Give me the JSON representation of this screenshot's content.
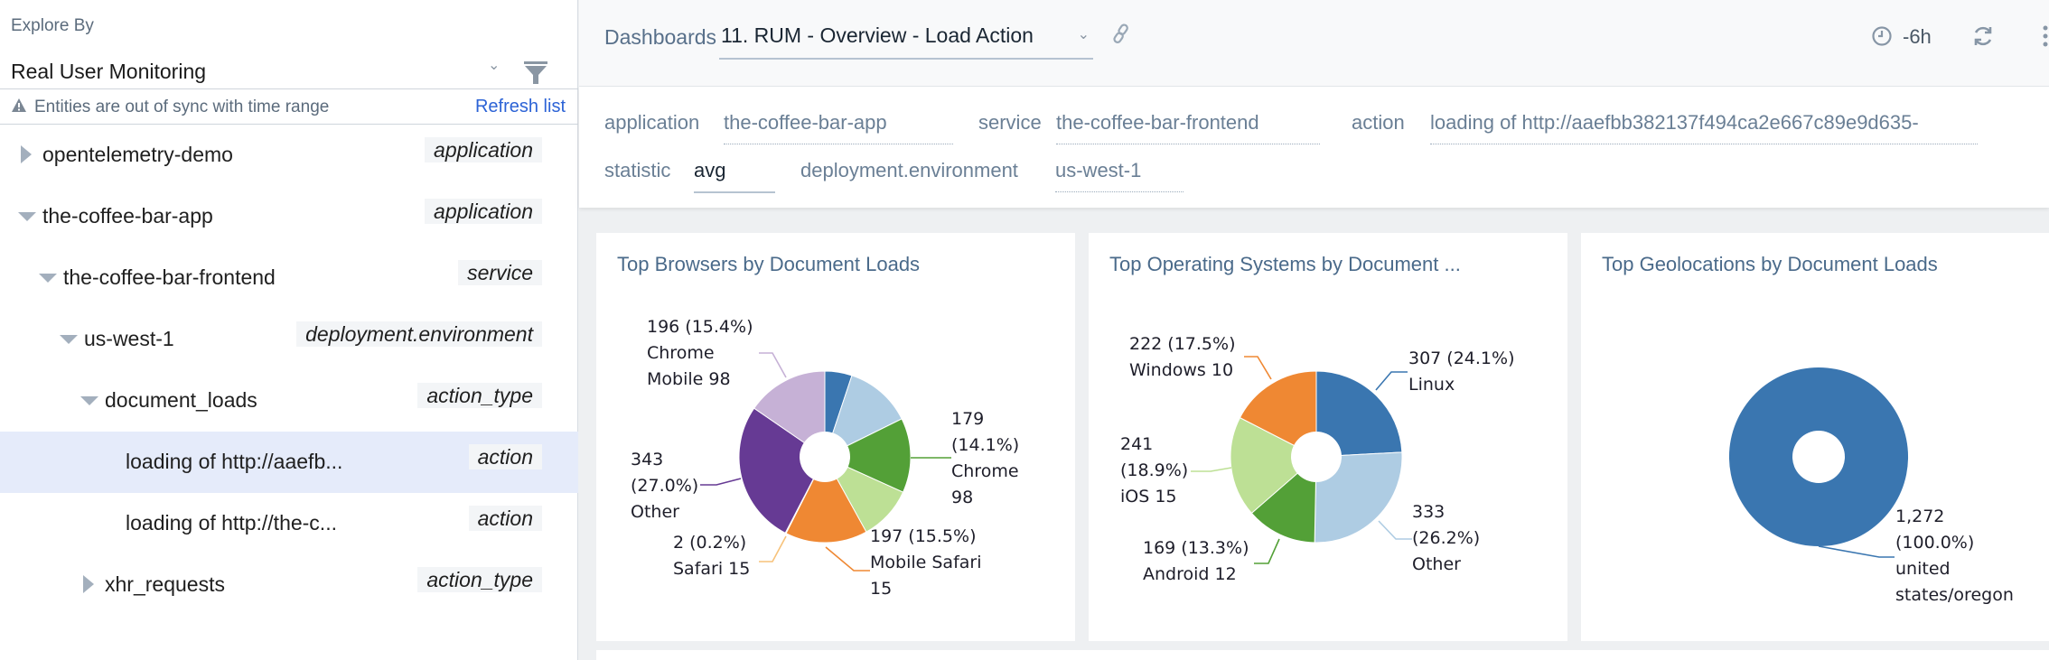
{
  "sidebar": {
    "explore_label": "Explore By",
    "explore_value": "Real User Monitoring",
    "warning": "Entities are out of sync with time range",
    "refresh_label": "Refresh list",
    "tree": [
      {
        "label": "opentelemetry-demo",
        "type": "application",
        "expanded": false,
        "level": 0
      },
      {
        "label": "the-coffee-bar-app",
        "type": "application",
        "expanded": true,
        "level": 0
      },
      {
        "label": "the-coffee-bar-frontend",
        "type": "service",
        "expanded": true,
        "level": 1
      },
      {
        "label": "us-west-1",
        "type": "deployment.environment",
        "expanded": true,
        "level": 2
      },
      {
        "label": "document_loads",
        "type": "action_type",
        "expanded": true,
        "level": 3
      },
      {
        "label": "loading of http://aaefb...",
        "type": "action",
        "level": 4,
        "selected": true
      },
      {
        "label": "loading of http://the-c...",
        "type": "action",
        "level": 4
      },
      {
        "label": "xhr_requests",
        "type": "action_type",
        "expanded": false,
        "level": 3
      }
    ]
  },
  "topbar": {
    "breadcrumb": "Dashboards",
    "dashboard": "11. RUM - Overview - Load Action",
    "time_range": "-6h"
  },
  "filters": {
    "application": {
      "key": "application",
      "value": "the-coffee-bar-app"
    },
    "service": {
      "key": "service",
      "value": "the-coffee-bar-frontend"
    },
    "action": {
      "key": "action",
      "value": "loading of http://aaefbb382137f494ca2e667c89e9d635-"
    },
    "statistic": {
      "key": "statistic",
      "value": "avg"
    },
    "environment": {
      "key": "deployment.environment",
      "value": "us-west-1"
    }
  },
  "chart_data": [
    {
      "type": "pie",
      "donut": true,
      "title": "Top Browsers by Document Loads",
      "slices": [
        {
          "label": "",
          "value": 65,
          "color": "#3a76b0"
        },
        {
          "label": "",
          "value": 160,
          "color": "#aecce3"
        },
        {
          "label": "Chrome 98",
          "value": 179,
          "percent": "14.1%",
          "color": "#53a037",
          "lines": [
            "179",
            "(14.1%)",
            "Chrome",
            "98"
          ]
        },
        {
          "label": "",
          "value": 130,
          "color": "#bde095"
        },
        {
          "label": "Mobile Safari 15",
          "value": 197,
          "percent": "15.5%",
          "color": "#ef8833",
          "lines": [
            "197 (15.5%)",
            "Mobile Safari",
            "15"
          ]
        },
        {
          "label": "Safari 15",
          "value": 2,
          "percent": "0.2%",
          "color": "#f7c27a",
          "lines": [
            "2 (0.2%)",
            "Safari 15"
          ]
        },
        {
          "label": "Other",
          "value": 343,
          "percent": "27.0%",
          "color": "#663a94",
          "lines": [
            "343",
            "(27.0%)",
            "Other"
          ]
        },
        {
          "label": "Chrome Mobile 98",
          "value": 196,
          "percent": "15.4%",
          "color": "#c6b1d6",
          "lines": [
            "196 (15.4%)",
            "Chrome",
            "Mobile 98"
          ]
        }
      ]
    },
    {
      "type": "pie",
      "donut": true,
      "title": "Top Operating Systems by Document ...",
      "slices": [
        {
          "label": "Linux",
          "value": 307,
          "percent": "24.1%",
          "color": "#3a76b0",
          "lines": [
            "307 (24.1%)",
            "Linux"
          ]
        },
        {
          "label": "Other",
          "value": 333,
          "percent": "26.2%",
          "color": "#aecce3",
          "lines": [
            "333",
            "(26.2%)",
            "Other"
          ]
        },
        {
          "label": "Android 12",
          "value": 169,
          "percent": "13.3%",
          "color": "#53a037",
          "lines": [
            "169 (13.3%)",
            "Android 12"
          ]
        },
        {
          "label": "iOS 15",
          "value": 241,
          "percent": "18.9%",
          "color": "#bde095",
          "lines": [
            "241",
            "(18.9%)",
            "iOS 15"
          ]
        },
        {
          "label": "Windows 10",
          "value": 222,
          "percent": "17.5%",
          "color": "#ef8833",
          "lines": [
            "222 (17.5%)",
            "Windows 10"
          ]
        }
      ]
    },
    {
      "type": "pie",
      "donut": true,
      "title": "Top Geolocations by Document Loads",
      "slices": [
        {
          "label": "united states/oregon",
          "value": 1272,
          "percent": "100.0%",
          "color": "#3a76b0",
          "lines": [
            "1,272",
            "(100.0%)",
            "united",
            "states/oregon"
          ]
        }
      ]
    }
  ]
}
